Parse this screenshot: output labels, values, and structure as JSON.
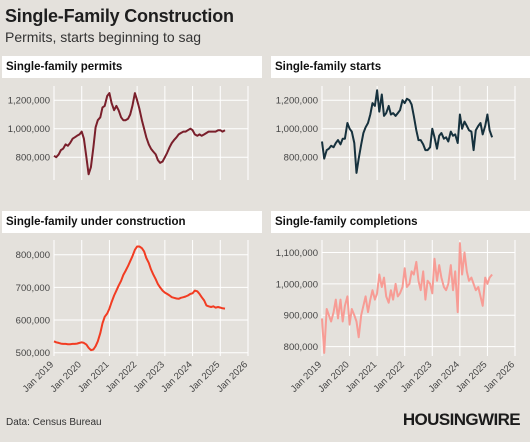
{
  "header": {
    "title": "Single-Family Construction",
    "subtitle": "Permits, starts beginning to sag"
  },
  "footer": {
    "source": "Data: Census Bureau",
    "brand": "HOUSINGWIRE"
  },
  "chart_data": [
    {
      "type": "line",
      "title": "Single-family permits",
      "color": "#7a1f2b",
      "x_ticks": [
        "Jan 2019",
        "Jan 2020",
        "Jan 2021",
        "Jan 2022",
        "Jan 2023",
        "Jan 2024",
        "Jan 2025",
        "Jan 2026"
      ],
      "xlim": [
        2019.0,
        2026.0
      ],
      "y_ticks": [
        800000,
        1000000,
        1200000
      ],
      "y_tick_labels": [
        "800,000",
        "1,000,000",
        "1,200,000"
      ],
      "ylim": [
        640000,
        1300000
      ],
      "x_show_labels": false,
      "x": [
        2019.0,
        2019.08,
        2019.17,
        2019.25,
        2019.33,
        2019.42,
        2019.5,
        2019.58,
        2019.67,
        2019.75,
        2019.83,
        2019.92,
        2020.0,
        2020.08,
        2020.17,
        2020.25,
        2020.33,
        2020.42,
        2020.5,
        2020.58,
        2020.67,
        2020.75,
        2020.83,
        2020.92,
        2021.0,
        2021.08,
        2021.17,
        2021.25,
        2021.33,
        2021.42,
        2021.5,
        2021.58,
        2021.67,
        2021.75,
        2021.83,
        2021.92,
        2022.0,
        2022.08,
        2022.17,
        2022.25,
        2022.33,
        2022.42,
        2022.5,
        2022.58,
        2022.67,
        2022.75,
        2022.83,
        2022.92,
        2023.0,
        2023.08,
        2023.17,
        2023.25,
        2023.33,
        2023.42,
        2023.5,
        2023.58,
        2023.67,
        2023.75,
        2023.83,
        2023.92,
        2024.0,
        2024.08,
        2024.17,
        2024.25,
        2024.33,
        2024.42,
        2024.5,
        2024.58,
        2024.67,
        2024.75,
        2024.83,
        2024.92,
        2025.0,
        2025.08,
        2025.17
      ],
      "y": [
        810000,
        800000,
        820000,
        850000,
        860000,
        890000,
        880000,
        900000,
        930000,
        940000,
        950000,
        960000,
        980000,
        930000,
        800000,
        680000,
        730000,
        870000,
        1010000,
        1060000,
        1080000,
        1150000,
        1160000,
        1230000,
        1250000,
        1180000,
        1130000,
        1160000,
        1130000,
        1080000,
        1060000,
        1060000,
        1070000,
        1100000,
        1160000,
        1250000,
        1200000,
        1140000,
        1060000,
        1000000,
        940000,
        890000,
        860000,
        840000,
        820000,
        780000,
        760000,
        770000,
        800000,
        830000,
        870000,
        900000,
        920000,
        940000,
        960000,
        970000,
        980000,
        980000,
        990000,
        1000000,
        990000,
        960000,
        950000,
        960000,
        950000,
        960000,
        970000,
        980000,
        980000,
        980000,
        980000,
        990000,
        990000,
        980000,
        990000
      ]
    },
    {
      "type": "line",
      "title": "Single-family starts",
      "color": "#16313d",
      "x_ticks": [
        "Jan 2019",
        "Jan 2020",
        "Jan 2021",
        "Jan 2022",
        "Jan 2023",
        "Jan 2024",
        "Jan 2025",
        "Jan 2026"
      ],
      "xlim": [
        2019.0,
        2026.0
      ],
      "y_ticks": [
        800000,
        1000000,
        1200000
      ],
      "y_tick_labels": [
        "800,000",
        "1,000,000",
        "1,200,000"
      ],
      "ylim": [
        640000,
        1300000
      ],
      "x_show_labels": false,
      "x": [
        2019.0,
        2019.08,
        2019.17,
        2019.25,
        2019.33,
        2019.42,
        2019.5,
        2019.58,
        2019.67,
        2019.75,
        2019.83,
        2019.92,
        2020.0,
        2020.08,
        2020.17,
        2020.25,
        2020.33,
        2020.42,
        2020.5,
        2020.58,
        2020.67,
        2020.75,
        2020.83,
        2020.92,
        2021.0,
        2021.08,
        2021.17,
        2021.25,
        2021.33,
        2021.42,
        2021.5,
        2021.58,
        2021.67,
        2021.75,
        2021.83,
        2021.92,
        2022.0,
        2022.08,
        2022.17,
        2022.25,
        2022.33,
        2022.42,
        2022.5,
        2022.58,
        2022.67,
        2022.75,
        2022.83,
        2022.92,
        2023.0,
        2023.08,
        2023.17,
        2023.25,
        2023.33,
        2023.42,
        2023.5,
        2023.58,
        2023.67,
        2023.75,
        2023.83,
        2023.92,
        2024.0,
        2024.08,
        2024.17,
        2024.25,
        2024.33,
        2024.42,
        2024.5,
        2024.58,
        2024.67,
        2024.75,
        2024.83,
        2024.92,
        2025.0,
        2025.08,
        2025.17
      ],
      "y": [
        910000,
        790000,
        850000,
        860000,
        880000,
        870000,
        900000,
        920000,
        890000,
        930000,
        930000,
        1040000,
        1000000,
        980000,
        900000,
        690000,
        790000,
        890000,
        970000,
        1010000,
        1040000,
        1100000,
        1180000,
        1160000,
        1270000,
        1120000,
        1240000,
        1090000,
        1110000,
        1160000,
        1100000,
        1110000,
        1090000,
        1110000,
        1130000,
        1200000,
        1180000,
        1210000,
        1200000,
        1170000,
        1090000,
        990000,
        920000,
        920000,
        890000,
        850000,
        850000,
        870000,
        1000000,
        940000,
        860000,
        950000,
        970000,
        930000,
        940000,
        910000,
        980000,
        950000,
        960000,
        900000,
        1100000,
        1000000,
        1050000,
        1020000,
        990000,
        980000,
        850000,
        990000,
        1020000,
        1040000,
        960000,
        1020000,
        1100000,
        990000,
        940000
      ]
    },
    {
      "type": "line",
      "title": "Single-family under construction",
      "color": "#f23c22",
      "x_ticks": [
        "Jan 2019",
        "Jan 2020",
        "Jan 2021",
        "Jan 2022",
        "Jan 2023",
        "Jan 2024",
        "Jan 2025",
        "Jan 2026"
      ],
      "xlim": [
        2019.0,
        2026.0
      ],
      "y_ticks": [
        500000,
        600000,
        700000,
        800000
      ],
      "y_tick_labels": [
        "500,000",
        "600,000",
        "700,000",
        "800,000"
      ],
      "ylim": [
        490000,
        845000
      ],
      "x_show_labels": true,
      "x": [
        2019.0,
        2019.08,
        2019.17,
        2019.25,
        2019.33,
        2019.42,
        2019.5,
        2019.58,
        2019.67,
        2019.75,
        2019.83,
        2019.92,
        2020.0,
        2020.08,
        2020.17,
        2020.25,
        2020.33,
        2020.42,
        2020.5,
        2020.58,
        2020.67,
        2020.75,
        2020.83,
        2020.92,
        2021.0,
        2021.08,
        2021.17,
        2021.25,
        2021.33,
        2021.42,
        2021.5,
        2021.58,
        2021.67,
        2021.75,
        2021.83,
        2021.92,
        2022.0,
        2022.08,
        2022.17,
        2022.25,
        2022.33,
        2022.42,
        2022.5,
        2022.58,
        2022.67,
        2022.75,
        2022.83,
        2022.92,
        2023.0,
        2023.08,
        2023.17,
        2023.25,
        2023.33,
        2023.42,
        2023.5,
        2023.58,
        2023.67,
        2023.75,
        2023.83,
        2023.92,
        2024.0,
        2024.08,
        2024.17,
        2024.25,
        2024.33,
        2024.42,
        2024.5,
        2024.58,
        2024.67,
        2024.75,
        2024.83,
        2024.92,
        2025.0,
        2025.08,
        2025.17
      ],
      "y": [
        535000,
        532000,
        530000,
        528000,
        527000,
        527000,
        526000,
        526000,
        527000,
        527000,
        528000,
        530000,
        532000,
        530000,
        525000,
        515000,
        508000,
        510000,
        520000,
        535000,
        560000,
        590000,
        610000,
        620000,
        635000,
        655000,
        675000,
        690000,
        705000,
        720000,
        738000,
        750000,
        765000,
        780000,
        795000,
        815000,
        825000,
        825000,
        820000,
        810000,
        790000,
        775000,
        755000,
        740000,
        725000,
        710000,
        700000,
        690000,
        684000,
        680000,
        675000,
        670000,
        668000,
        666000,
        665000,
        668000,
        670000,
        672000,
        675000,
        680000,
        682000,
        690000,
        688000,
        680000,
        670000,
        660000,
        645000,
        642000,
        640000,
        642000,
        638000,
        640000,
        638000,
        636000,
        635000
      ]
    },
    {
      "type": "line",
      "title": "Single-family completions",
      "color": "#f79c95",
      "x_ticks": [
        "Jan 2019",
        "Jan 2020",
        "Jan 2021",
        "Jan 2022",
        "Jan 2023",
        "Jan 2024",
        "Jan 2025",
        "Jan 2026"
      ],
      "xlim": [
        2019.0,
        2026.0
      ],
      "y_ticks": [
        800000,
        900000,
        1000000,
        1100000
      ],
      "y_tick_labels": [
        "800,000",
        "900,000",
        "1,000,000",
        "1,100,000"
      ],
      "ylim": [
        770000,
        1140000
      ],
      "x_show_labels": true,
      "x": [
        2019.0,
        2019.08,
        2019.17,
        2019.25,
        2019.33,
        2019.42,
        2019.5,
        2019.58,
        2019.67,
        2019.75,
        2019.83,
        2019.92,
        2020.0,
        2020.08,
        2020.17,
        2020.25,
        2020.33,
        2020.42,
        2020.5,
        2020.58,
        2020.67,
        2020.75,
        2020.83,
        2020.92,
        2021.0,
        2021.08,
        2021.17,
        2021.25,
        2021.33,
        2021.42,
        2021.5,
        2021.58,
        2021.67,
        2021.75,
        2021.83,
        2021.92,
        2022.0,
        2022.08,
        2022.17,
        2022.25,
        2022.33,
        2022.42,
        2022.5,
        2022.58,
        2022.67,
        2022.75,
        2022.83,
        2022.92,
        2023.0,
        2023.08,
        2023.17,
        2023.25,
        2023.33,
        2023.42,
        2023.5,
        2023.58,
        2023.67,
        2023.75,
        2023.83,
        2023.92,
        2024.0,
        2024.08,
        2024.17,
        2024.25,
        2024.33,
        2024.42,
        2024.5,
        2024.58,
        2024.67,
        2024.75,
        2024.83,
        2024.92,
        2025.0,
        2025.08,
        2025.17
      ],
      "y": [
        890000,
        780000,
        920000,
        900000,
        880000,
        910000,
        950000,
        890000,
        950000,
        880000,
        930000,
        960000,
        870000,
        920000,
        900000,
        880000,
        830000,
        900000,
        930000,
        960000,
        910000,
        950000,
        980000,
        950000,
        970000,
        1030000,
        990000,
        1020000,
        960000,
        940000,
        980000,
        950000,
        1000000,
        960000,
        970000,
        990000,
        1050000,
        990000,
        1000000,
        1040000,
        1030000,
        1070000,
        1010000,
        980000,
        1040000,
        950000,
        1010000,
        1000000,
        970000,
        1080000,
        1010000,
        1060000,
        1020000,
        990000,
        980000,
        1000000,
        1060000,
        980000,
        1040000,
        910000,
        1130000,
        1030000,
        1100000,
        1040000,
        1010000,
        1020000,
        1000000,
        980000,
        990000,
        960000,
        930000,
        1020000,
        1000000,
        1020000,
        1030000
      ]
    }
  ]
}
